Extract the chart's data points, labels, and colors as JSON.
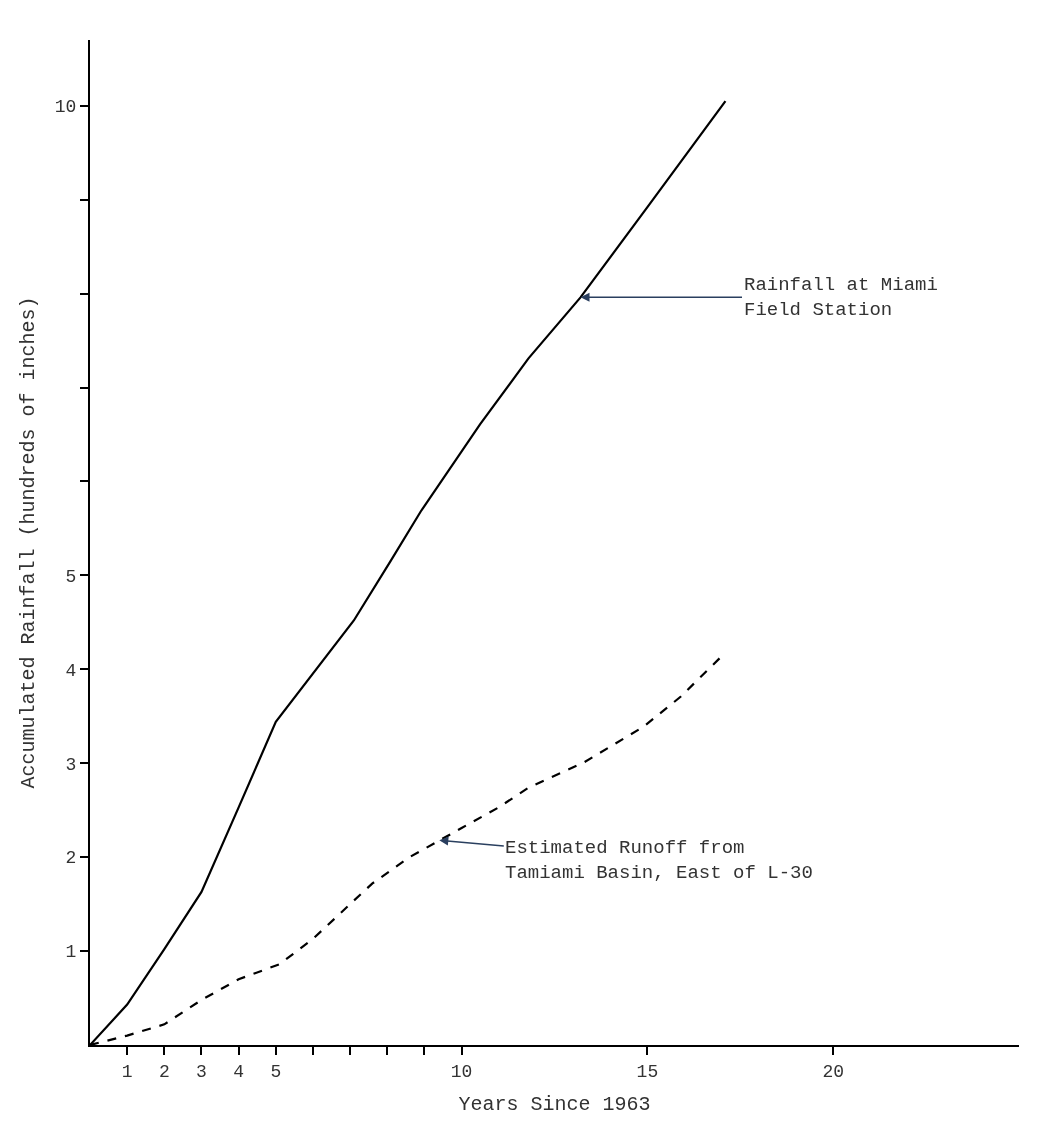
{
  "chart_data": {
    "type": "line",
    "xlabel": "Years Since 1963",
    "ylabel": "Accumulated Rainfall (hundreds of inches)",
    "xlim": [
      0,
      25
    ],
    "ylim": [
      0,
      10.7
    ],
    "xticks": [
      1,
      2,
      3,
      4,
      5,
      {
        "value": 6,
        "label": null
      },
      {
        "value": 7,
        "label": null
      },
      {
        "value": 8,
        "label": null
      },
      {
        "value": 9,
        "label": null
      },
      10,
      15,
      20
    ],
    "yticks": [
      1,
      2,
      3,
      4,
      5,
      {
        "value": 6,
        "label": null
      },
      {
        "value": 7,
        "label": null
      },
      {
        "value": 8,
        "label": null
      },
      {
        "value": 9,
        "label": null
      },
      10
    ],
    "marker": "none",
    "series": [
      {
        "color": "#000000",
        "line_style": "solid",
        "x": [
          0,
          1,
          2,
          3,
          4,
          5,
          7.1,
          8.1,
          8.9,
          10.5,
          11.8,
          13.2,
          15,
          17.1
        ],
        "values": [
          0,
          0.43,
          1.02,
          1.63,
          2.53,
          3.44,
          4.52,
          5.16,
          5.68,
          6.61,
          7.31,
          7.96,
          8.92,
          10.05
        ]
      },
      {
        "color": "#000000",
        "line_style": "dashed",
        "x": [
          0,
          1,
          2,
          3,
          4,
          5.1,
          6,
          7,
          7.6,
          8.6,
          10,
          11,
          11.8,
          13.3,
          14.9,
          15.9,
          17
        ],
        "values": [
          0,
          0.1,
          0.22,
          0.48,
          0.7,
          0.86,
          1.13,
          1.5,
          1.72,
          2.0,
          2.31,
          2.53,
          2.74,
          3.01,
          3.39,
          3.71,
          4.14
        ]
      }
    ],
    "annotations": [
      {
        "text": "Rainfall at Miami\nField Station",
        "x": 13.2,
        "y": 7.96
      },
      {
        "text": "Estimated Runoff from\nTamiami Basin, East of L-30",
        "x": 9.4,
        "y": 2.18
      }
    ]
  }
}
